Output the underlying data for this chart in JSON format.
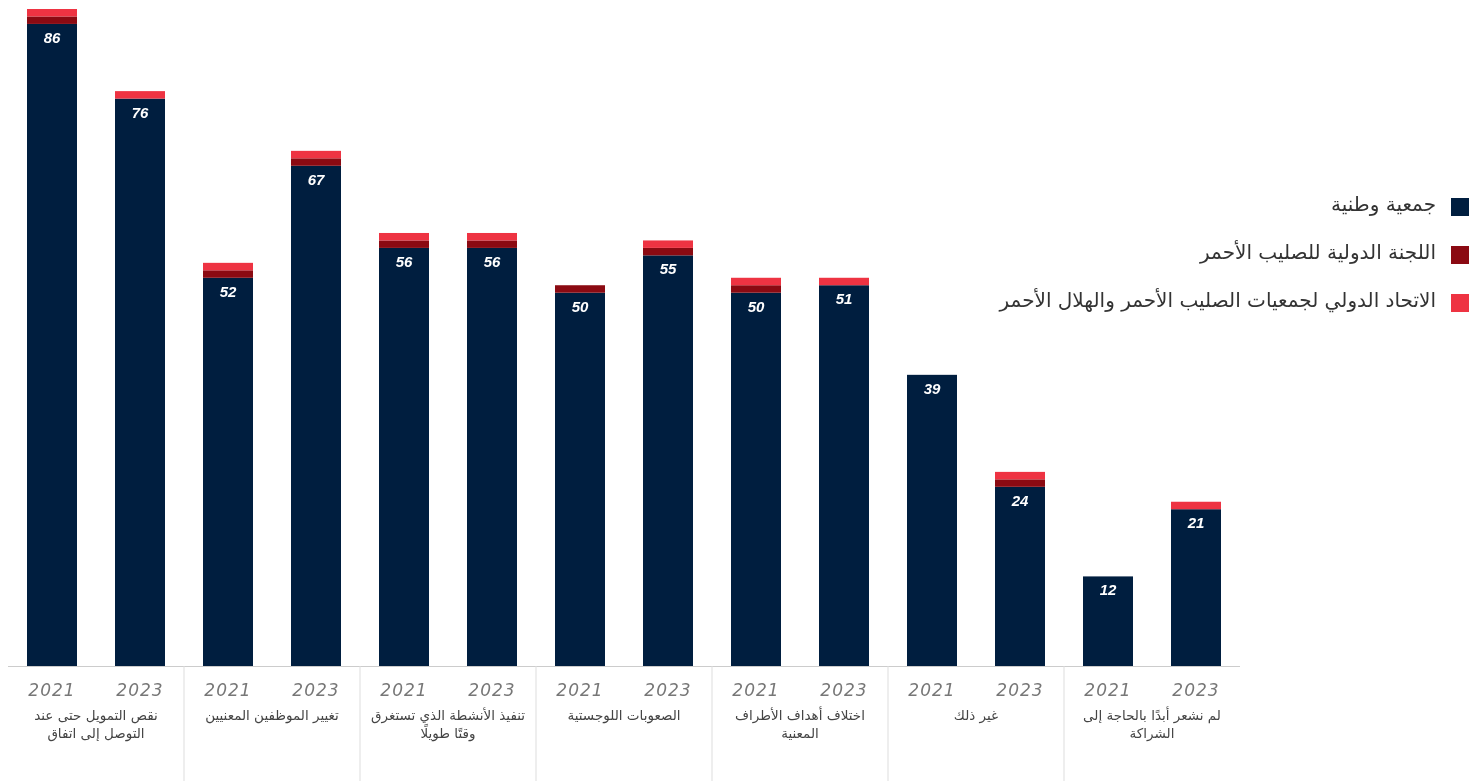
{
  "chart_data": {
    "type": "bar",
    "stacked": true,
    "legend": "right",
    "categories": [
      "2021",
      "2023",
      "2021",
      "2023",
      "2021",
      "2023",
      "2021",
      "2023",
      "2021",
      "2023",
      "2021",
      "2023",
      "2021",
      "2023"
    ],
    "series": [
      {
        "name": "جمعية وطنية",
        "color": "#001e3f",
        "values": [
          86,
          76,
          52,
          67,
          56,
          56,
          50,
          55,
          50,
          51,
          39,
          24,
          12,
          21
        ],
        "value_labels": [
          "86",
          "76",
          "52",
          "67",
          "56",
          "56",
          "50",
          "55",
          "50",
          "51",
          "39",
          "24",
          "12",
          "21"
        ]
      },
      {
        "name": "اللجنة الدولية للصليب الأحمر",
        "color": "#8b0a12",
        "values": [
          1,
          0,
          1,
          1,
          1,
          1,
          1,
          1,
          1,
          0,
          0,
          1,
          0,
          0
        ]
      },
      {
        "name": "الاتحاد الدولي لجمعيات الصليب الأحمر والهلال الأحمر",
        "color": "#ee3342",
        "values": [
          1,
          1,
          1,
          1,
          1,
          1,
          0,
          1,
          1,
          1,
          0,
          1,
          0,
          1
        ]
      }
    ],
    "annotations": [
      "نقص التمويل حتى عند التوصل إلى اتفاق",
      "تغيير الموظفين المعنيين",
      "تنفيذ الأنشطة الذي تستغرق وقتًا طويلًا",
      "الصعوبات اللوجستية",
      "اختلاف أهداف الأطراف المعنية",
      "غير ذلك",
      "لم نشعر أبدًا بالحاجة إلى الشراكة"
    ]
  }
}
